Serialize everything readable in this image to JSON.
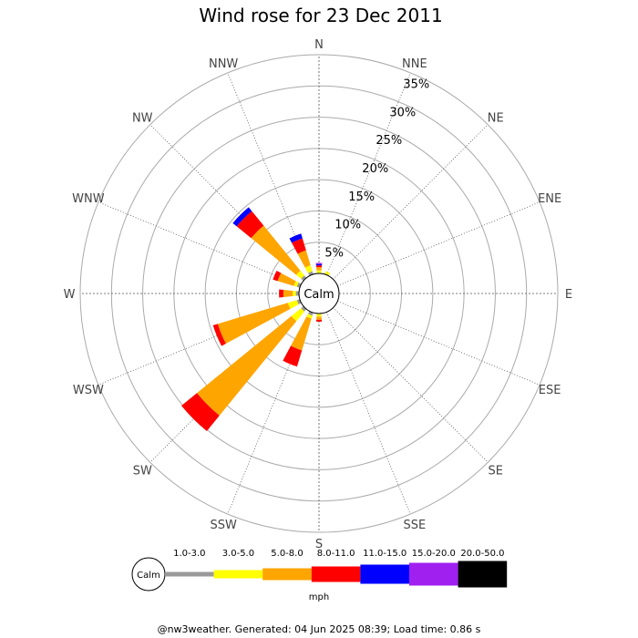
{
  "chart_data": {
    "type": "wind-rose",
    "title": "Wind rose for 23 Dec 2011",
    "directions": [
      "N",
      "NNE",
      "NE",
      "ENE",
      "E",
      "ESE",
      "SE",
      "SSE",
      "S",
      "SSW",
      "SW",
      "WSW",
      "W",
      "WNW",
      "NW",
      "NNW"
    ],
    "ring_values": [
      5,
      10,
      15,
      20,
      25,
      30,
      35
    ],
    "ring_labels": [
      "5%",
      "10%",
      "15%",
      "20%",
      "25%",
      "30%",
      "35%"
    ],
    "rmax": 35,
    "calm_label": "Calm",
    "speed_bins": [
      {
        "label": "1.0-3.0",
        "color": "#999999"
      },
      {
        "label": "3.0-5.0",
        "color": "#ffff00"
      },
      {
        "label": "5.0-8.0",
        "color": "#ffa500"
      },
      {
        "label": "8.0-11.0",
        "color": "#ff0000"
      },
      {
        "label": "11.0-15.0",
        "color": "#0000ff"
      },
      {
        "label": "15.0-20.0",
        "color": "#a020f0"
      },
      {
        "label": "20.0-50.0",
        "color": "#000000"
      }
    ],
    "series": [
      {
        "dir": "N",
        "values": [
          0.0,
          0.5,
          0.5,
          0.3,
          0.2,
          0.2,
          0.0
        ]
      },
      {
        "dir": "NNE",
        "values": [
          0.0,
          0.5,
          0.0,
          0.0,
          0.0,
          0.0,
          0.0
        ]
      },
      {
        "dir": "NE",
        "values": [
          0.0,
          0.0,
          0.0,
          0.0,
          0.0,
          0.0,
          0.0
        ]
      },
      {
        "dir": "ENE",
        "values": [
          0.0,
          0.0,
          0.0,
          0.0,
          0.0,
          0.0,
          0.0
        ]
      },
      {
        "dir": "E",
        "values": [
          0.0,
          0.0,
          0.0,
          0.0,
          0.0,
          0.0,
          0.0
        ]
      },
      {
        "dir": "ESE",
        "values": [
          0.0,
          0.0,
          0.0,
          0.0,
          0.0,
          0.0,
          0.0
        ]
      },
      {
        "dir": "SE",
        "values": [
          0.0,
          0.0,
          0.0,
          0.0,
          0.0,
          0.0,
          0.0
        ]
      },
      {
        "dir": "SSE",
        "values": [
          0.0,
          0.0,
          0.0,
          0.0,
          0.0,
          0.0,
          0.0
        ]
      },
      {
        "dir": "S",
        "values": [
          0.0,
          0.5,
          0.5,
          0.3,
          0.0,
          0.0,
          0.0
        ]
      },
      {
        "dir": "SSW",
        "values": [
          0.5,
          0.5,
          5.3,
          2.7,
          0.0,
          0.0,
          0.0
        ]
      },
      {
        "dir": "SW",
        "values": [
          0.5,
          2.0,
          19.5,
          3.2,
          0.0,
          0.0,
          0.0
        ]
      },
      {
        "dir": "WSW",
        "values": [
          0.5,
          1.5,
          11.7,
          0.8,
          0.0,
          0.0,
          0.0
        ]
      },
      {
        "dir": "W",
        "values": [
          0.5,
          0.5,
          1.5,
          0.7,
          0.0,
          0.0,
          0.0
        ]
      },
      {
        "dir": "WNW",
        "values": [
          0.5,
          0.5,
          2.7,
          0.8,
          0.0,
          0.0,
          0.0
        ]
      },
      {
        "dir": "NW",
        "values": [
          0.5,
          1.0,
          9.3,
          3.0,
          0.8,
          0.0,
          0.0
        ]
      },
      {
        "dir": "NNW",
        "values": [
          0.5,
          1.0,
          2.5,
          2.0,
          0.8,
          0.0,
          0.0
        ]
      }
    ],
    "legend_unit": "mph",
    "legend_calm": "Calm"
  },
  "footer": "@nw3weather. Generated: 04 Jun 2025 08:39; Load time: 0.86 s"
}
